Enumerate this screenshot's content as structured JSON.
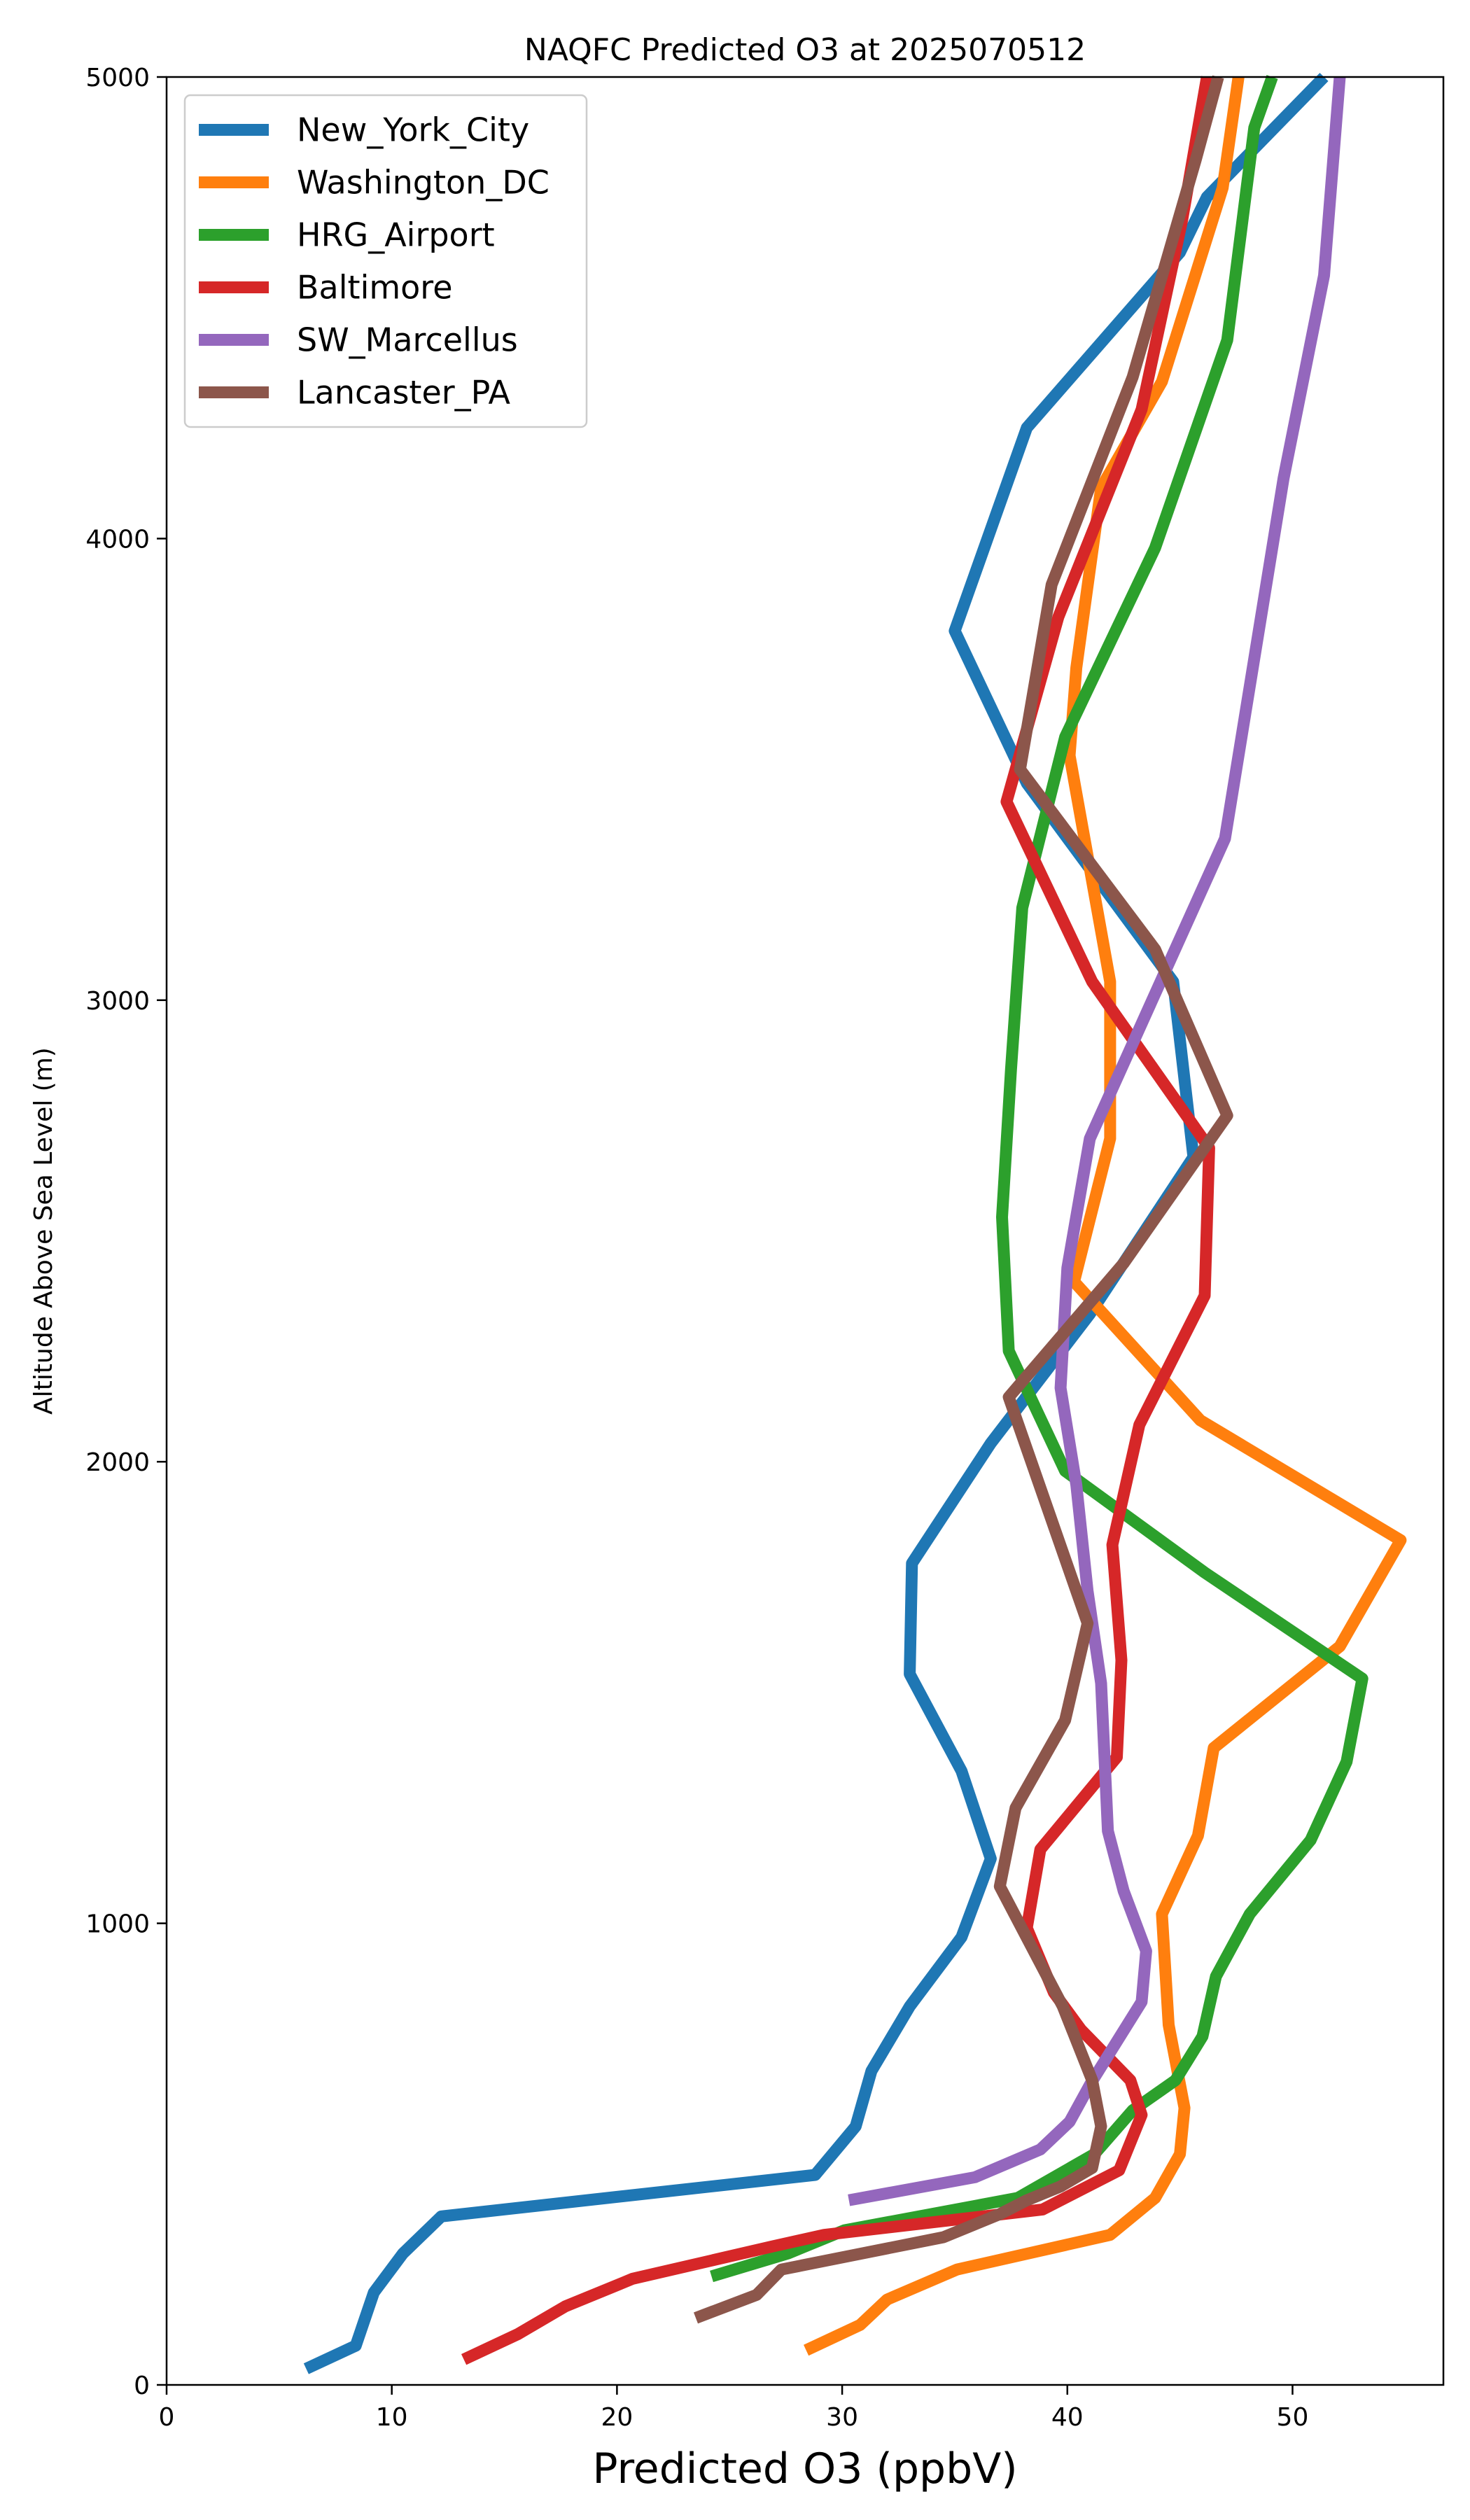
{
  "chart_data": {
    "type": "line",
    "title": "NAQFC Predicted O3 at 2025070512",
    "xlabel": "Predicted O3 (ppbV)",
    "ylabel": "Altitude Above Sea Level (m)",
    "xlim": [
      0,
      56.7
    ],
    "ylim": [
      0,
      5000
    ],
    "xticks": [
      0,
      10,
      20,
      30,
      40,
      50
    ],
    "yticks": [
      0,
      1000,
      2000,
      3000,
      4000,
      5000
    ],
    "grid": false,
    "legend_position": "upper-left",
    "series": [
      {
        "name": "New_York_City",
        "color": "#1f77b4",
        "points": [
          [
            6.2,
            35
          ],
          [
            8.4,
            85
          ],
          [
            9.2,
            200
          ],
          [
            10.5,
            285
          ],
          [
            12.2,
            365
          ],
          [
            28.8,
            455
          ],
          [
            30.6,
            560
          ],
          [
            31.3,
            680
          ],
          [
            33.0,
            820
          ],
          [
            35.3,
            970
          ],
          [
            36.6,
            1140
          ],
          [
            35.3,
            1330
          ],
          [
            33.0,
            1540
          ],
          [
            33.1,
            1780
          ],
          [
            36.6,
            2040
          ],
          [
            41.0,
            2320
          ],
          [
            45.6,
            2660
          ],
          [
            44.7,
            3040
          ],
          [
            38.2,
            3470
          ],
          [
            35.0,
            3800
          ],
          [
            38.2,
            4240
          ],
          [
            45.0,
            4620
          ],
          [
            46.2,
            4740
          ],
          [
            51.4,
            5000
          ]
        ]
      },
      {
        "name": "Washington_DC",
        "color": "#ff7f0e",
        "points": [
          [
            28.4,
            75
          ],
          [
            30.8,
            130
          ],
          [
            32.0,
            185
          ],
          [
            35.1,
            250
          ],
          [
            41.9,
            325
          ],
          [
            43.9,
            405
          ],
          [
            45.0,
            500
          ],
          [
            45.2,
            600
          ],
          [
            44.5,
            780
          ],
          [
            44.2,
            1020
          ],
          [
            45.8,
            1190
          ],
          [
            46.5,
            1380
          ],
          [
            52.1,
            1600
          ],
          [
            54.8,
            1830
          ],
          [
            45.9,
            2090
          ],
          [
            40.3,
            2390
          ],
          [
            41.9,
            2700
          ],
          [
            41.9,
            3040
          ],
          [
            40.1,
            3530
          ],
          [
            40.4,
            3720
          ],
          [
            41.5,
            4110
          ],
          [
            44.2,
            4340
          ],
          [
            46.9,
            4760
          ],
          [
            47.6,
            5000
          ]
        ]
      },
      {
        "name": "HRG_Airport",
        "color": "#2ca02c",
        "points": [
          [
            24.2,
            235
          ],
          [
            27.6,
            285
          ],
          [
            30.1,
            335
          ],
          [
            37.8,
            405
          ],
          [
            41.2,
            500
          ],
          [
            42.9,
            595
          ],
          [
            44.8,
            660
          ],
          [
            46.0,
            755
          ],
          [
            46.6,
            885
          ],
          [
            48.1,
            1020
          ],
          [
            50.8,
            1180
          ],
          [
            52.4,
            1350
          ],
          [
            53.1,
            1530
          ],
          [
            46.1,
            1760
          ],
          [
            39.9,
            1980
          ],
          [
            37.4,
            2240
          ],
          [
            37.1,
            2530
          ],
          [
            37.5,
            2850
          ],
          [
            38.0,
            3200
          ],
          [
            39.9,
            3570
          ],
          [
            43.9,
            3980
          ],
          [
            47.1,
            4430
          ],
          [
            48.3,
            4890
          ],
          [
            49.1,
            5000
          ]
        ]
      },
      {
        "name": "Baltimore",
        "color": "#d62728",
        "points": [
          [
            13.2,
            55
          ],
          [
            15.6,
            110
          ],
          [
            17.7,
            170
          ],
          [
            20.7,
            230
          ],
          [
            26.9,
            300
          ],
          [
            29.2,
            325
          ],
          [
            38.9,
            380
          ],
          [
            42.3,
            465
          ],
          [
            43.3,
            585
          ],
          [
            42.8,
            660
          ],
          [
            40.6,
            770
          ],
          [
            39.4,
            850
          ],
          [
            38.2,
            990
          ],
          [
            38.8,
            1160
          ],
          [
            42.2,
            1360
          ],
          [
            42.4,
            1570
          ],
          [
            42.0,
            1820
          ],
          [
            43.2,
            2080
          ],
          [
            46.1,
            2360
          ],
          [
            46.3,
            2680
          ],
          [
            41.1,
            3040
          ],
          [
            37.3,
            3430
          ],
          [
            39.6,
            3830
          ],
          [
            43.3,
            4280
          ],
          [
            45.1,
            4690
          ],
          [
            46.2,
            5000
          ]
        ]
      },
      {
        "name": "SW_Marcellus",
        "color": "#9467bd",
        "points": [
          [
            30.3,
            400
          ],
          [
            35.9,
            450
          ],
          [
            38.8,
            510
          ],
          [
            40.1,
            570
          ],
          [
            41.0,
            650
          ],
          [
            43.3,
            830
          ],
          [
            43.5,
            940
          ],
          [
            42.5,
            1070
          ],
          [
            41.8,
            1200
          ],
          [
            41.5,
            1520
          ],
          [
            40.9,
            1720
          ],
          [
            40.4,
            1950
          ],
          [
            39.7,
            2160
          ],
          [
            40.0,
            2420
          ],
          [
            41.0,
            2700
          ],
          [
            47.0,
            3350
          ],
          [
            49.6,
            4130
          ],
          [
            51.4,
            4570
          ],
          [
            52.1,
            5000
          ]
        ]
      },
      {
        "name": "Lancaster_PA",
        "color": "#8c564b",
        "points": [
          [
            23.5,
            145
          ],
          [
            26.2,
            195
          ],
          [
            27.3,
            250
          ],
          [
            34.5,
            320
          ],
          [
            37.0,
            370
          ],
          [
            38.2,
            400
          ],
          [
            39.7,
            430
          ],
          [
            41.1,
            470
          ],
          [
            41.5,
            560
          ],
          [
            41.1,
            660
          ],
          [
            39.8,
            820
          ],
          [
            37.0,
            1080
          ],
          [
            37.7,
            1250
          ],
          [
            39.9,
            1440
          ],
          [
            40.9,
            1650
          ],
          [
            37.4,
            2140
          ],
          [
            42.5,
            2430
          ],
          [
            47.1,
            2750
          ],
          [
            43.9,
            3110
          ],
          [
            37.9,
            3500
          ],
          [
            39.3,
            3900
          ],
          [
            42.9,
            4350
          ],
          [
            45.7,
            4820
          ],
          [
            46.7,
            5000
          ]
        ]
      }
    ]
  }
}
